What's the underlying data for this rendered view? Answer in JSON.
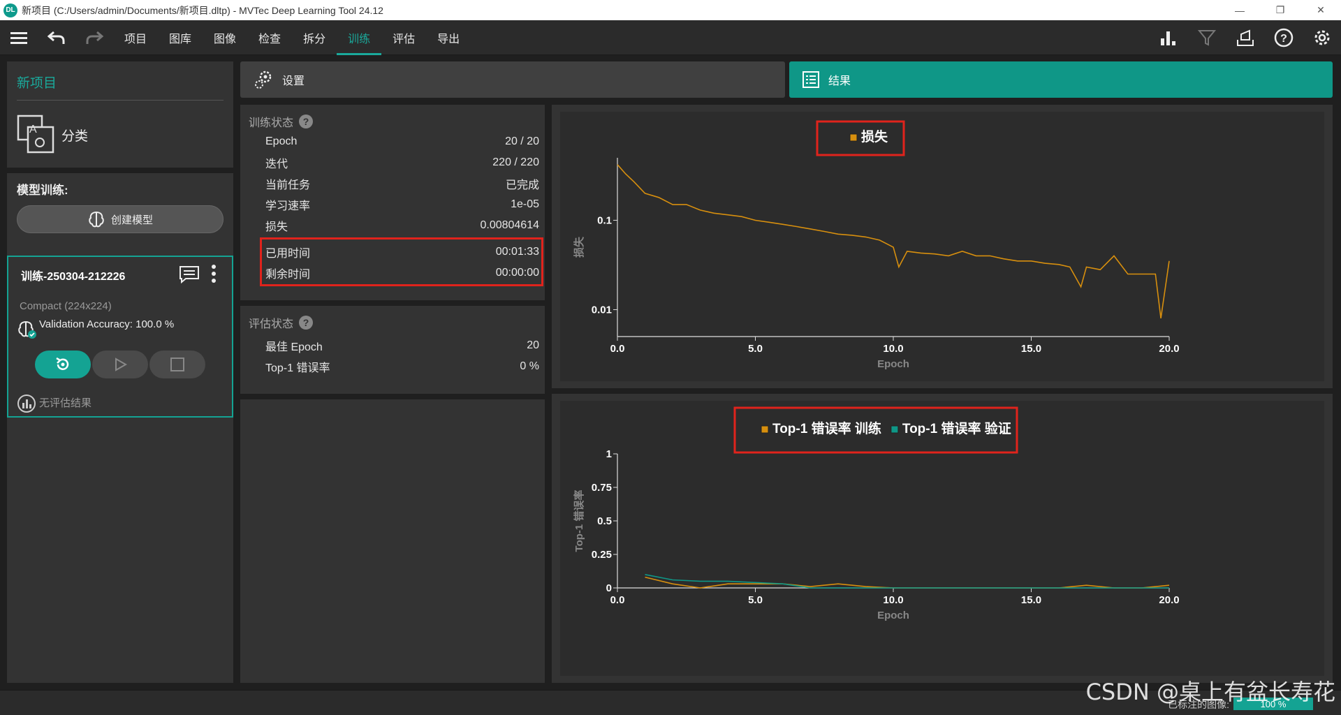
{
  "window": {
    "title": "新项目 (C:/Users/admin/Documents/新项目.dltp) - MVTec Deep Learning Tool 24.12",
    "logo": "DL"
  },
  "menu": {
    "items": [
      "项目",
      "图库",
      "图像",
      "检查",
      "拆分",
      "训练",
      "评估",
      "导出"
    ],
    "active": "训练"
  },
  "project": {
    "title": "新项目",
    "type": "分类"
  },
  "training": {
    "label": "模型训练:",
    "create_model": "创建模型",
    "run": {
      "name": "训练-250304-212226",
      "architecture": "Compact (224x224)",
      "accuracy": "Validation Accuracy: 100.0 %",
      "evaluation": "无评估结果"
    }
  },
  "tabs": {
    "settings": "设置",
    "results": "结果"
  },
  "train_status": {
    "title": "训练状态",
    "rows": [
      {
        "label": "Epoch",
        "value": "20 / 20"
      },
      {
        "label": "迭代",
        "value": "220 / 220"
      },
      {
        "label": "当前任务",
        "value": "已完成"
      },
      {
        "label": "学习速率",
        "value": "1e-05"
      },
      {
        "label": "损失",
        "value": "0.00804614"
      },
      {
        "label": "已用时间",
        "value": "00:01:33"
      },
      {
        "label": "剩余时间",
        "value": "00:00:00"
      }
    ]
  },
  "eval_status": {
    "title": "评估状态",
    "rows": [
      {
        "label": "最佳 Epoch",
        "value": "20"
      },
      {
        "label": "Top-1 错误率",
        "value": "0 %"
      }
    ]
  },
  "statusbar": {
    "labeled_images": "已标注的图像:",
    "progress": "100 %"
  },
  "watermark": "CSDN @桌上有盆长寿花",
  "colors": {
    "accent": "#14a393",
    "train_series": "#d78f0e",
    "val_series": "#0f9787",
    "highlight_box": "#e0231c"
  },
  "chart_data": [
    {
      "type": "line",
      "title": "",
      "xlabel": "Epoch",
      "ylabel": "损失",
      "yscale": "log",
      "xlim": [
        0,
        20
      ],
      "ylim": [
        0.005,
        0.5
      ],
      "xticks": [
        "0.0",
        "5.0",
        "10.0",
        "15.0",
        "20.0"
      ],
      "yticks": [
        "0.1",
        "0.01"
      ],
      "series": [
        {
          "name": "损失",
          "x": [
            0,
            0.3,
            0.6,
            1.0,
            1.5,
            2.0,
            2.5,
            3.0,
            3.5,
            4.0,
            4.5,
            5.0,
            5.5,
            6.0,
            6.5,
            7.0,
            7.5,
            8.0,
            8.5,
            9.0,
            9.5,
            10.0,
            10.2,
            10.5,
            11.0,
            11.5,
            12.0,
            12.5,
            13.0,
            13.5,
            14.0,
            14.5,
            15.0,
            15.5,
            16.0,
            16.4,
            16.8,
            17.0,
            17.5,
            18.0,
            18.5,
            19.0,
            19.5,
            19.7,
            20.0
          ],
          "y": [
            0.42,
            0.33,
            0.27,
            0.2,
            0.18,
            0.15,
            0.15,
            0.13,
            0.12,
            0.115,
            0.11,
            0.1,
            0.095,
            0.09,
            0.085,
            0.08,
            0.075,
            0.07,
            0.068,
            0.065,
            0.06,
            0.05,
            0.03,
            0.045,
            0.043,
            0.042,
            0.04,
            0.045,
            0.04,
            0.04,
            0.037,
            0.035,
            0.035,
            0.033,
            0.032,
            0.03,
            0.018,
            0.03,
            0.028,
            0.04,
            0.025,
            0.025,
            0.025,
            0.008,
            0.035
          ]
        }
      ]
    },
    {
      "type": "line",
      "title": "",
      "xlabel": "Epoch",
      "ylabel": "Top-1 错误率",
      "xlim": [
        0,
        20
      ],
      "ylim": [
        0,
        1
      ],
      "xticks": [
        "0.0",
        "5.0",
        "10.0",
        "15.0",
        "20.0"
      ],
      "yticks": [
        "1",
        "0.75",
        "0.5",
        "0.25",
        "0"
      ],
      "series": [
        {
          "name": "Top-1 错误率 训练",
          "x": [
            1,
            2,
            3,
            4,
            5,
            6,
            7,
            8,
            9,
            10,
            11,
            12,
            13,
            14,
            15,
            16,
            17,
            18,
            19,
            20
          ],
          "y": [
            0.08,
            0.03,
            0.0,
            0.03,
            0.03,
            0.03,
            0.01,
            0.03,
            0.01,
            0.0,
            0.0,
            0.0,
            0.0,
            0.0,
            0.0,
            0.0,
            0.02,
            0.0,
            0.0,
            0.02
          ]
        },
        {
          "name": "Top-1 错误率 验证",
          "x": [
            1,
            2,
            3,
            4,
            5,
            6,
            7,
            8,
            9,
            10,
            11,
            12,
            13,
            14,
            15,
            16,
            17,
            18,
            19,
            20
          ],
          "y": [
            0.1,
            0.06,
            0.05,
            0.05,
            0.04,
            0.03,
            0.0,
            0.0,
            0.0,
            0.0,
            0.0,
            0.0,
            0.0,
            0.0,
            0.0,
            0.0,
            0.0,
            0.0,
            0.0,
            0.0
          ]
        }
      ]
    }
  ]
}
